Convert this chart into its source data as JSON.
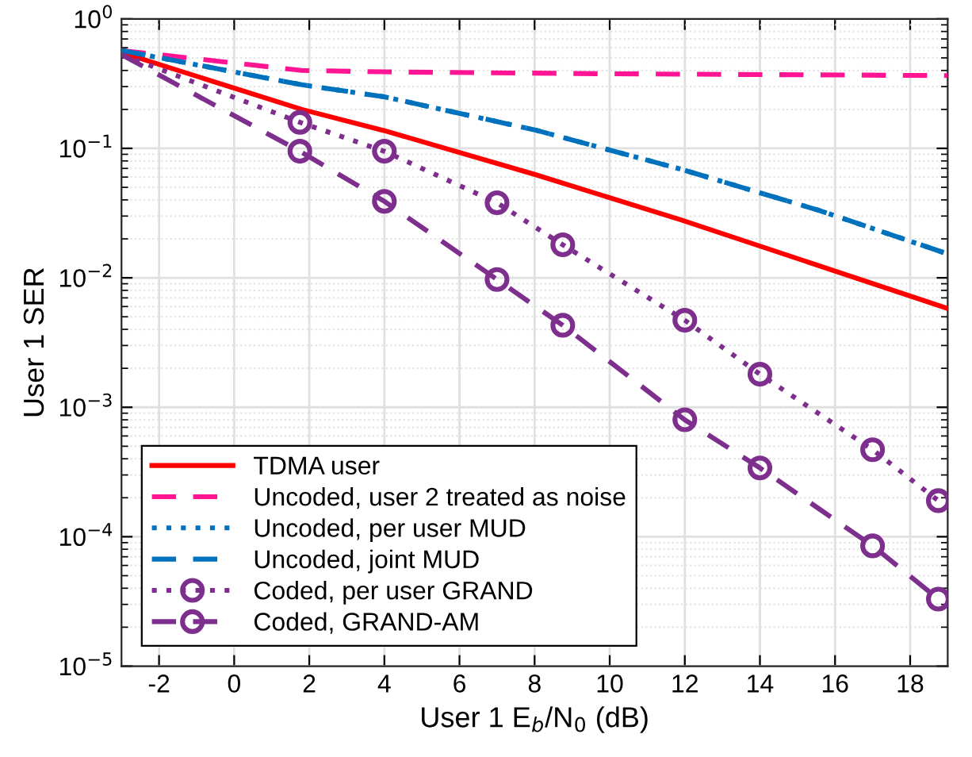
{
  "chart_data": {
    "type": "line",
    "xlabel": "User 1 E$_{b}$/N$_{0}$ (dB)",
    "ylabel": "User 1 SER",
    "xlim": [
      -3,
      19
    ],
    "xticks": [
      -2,
      0,
      2,
      4,
      6,
      8,
      10,
      12,
      14,
      16,
      18
    ],
    "log": "y",
    "ylim": [
      1e-05,
      1
    ],
    "yticks": [
      {
        "value": 1e-05,
        "label": "10$^{−5}$"
      },
      {
        "value": 0.0001,
        "label": "10$^{−4}$"
      },
      {
        "value": 0.001,
        "label": "10$^{−3}$"
      },
      {
        "value": 0.01,
        "label": "10$^{−2}$"
      },
      {
        "value": 0.1,
        "label": "10$^{−1}$"
      },
      {
        "value": 1,
        "label": "10$^{0}$"
      }
    ],
    "grid": true,
    "legend": "bottom left",
    "series": [
      {
        "name": "TDMA user",
        "color": "#ff0000",
        "line_style": "solid",
        "marker": "none",
        "x": [
          -3,
          1.8,
          4,
          8,
          11.9,
          19
        ],
        "values": [
          0.55,
          0.2,
          0.137,
          0.063,
          0.028,
          0.0058
        ]
      },
      {
        "name": "Uncoded, user 2 treated as noise",
        "color": "#ff1493",
        "line_style": "dashed",
        "marker": "none",
        "x": [
          -3,
          1.8,
          4,
          10,
          19
        ],
        "values": [
          0.57,
          0.4,
          0.39,
          0.377,
          0.365
        ]
      },
      {
        "name": "Uncoded, per user MUD",
        "color": "#0072bd",
        "line_style": "dotted",
        "marker": "none",
        "x": [
          -3,
          1.8,
          4,
          8,
          11.9,
          15.6,
          19
        ],
        "values": [
          0.57,
          0.31,
          0.25,
          0.139,
          0.069,
          0.033,
          0.0153
        ]
      },
      {
        "name": "Uncoded, joint MUD",
        "color": "#0072bd",
        "line_style": "dashed",
        "marker": "none",
        "x": [
          -3,
          1.8,
          4,
          8,
          11.9,
          15.6,
          19
        ],
        "values": [
          0.57,
          0.31,
          0.25,
          0.139,
          0.069,
          0.033,
          0.0153
        ]
      },
      {
        "name": "Coded, per user GRAND",
        "color": "#7e2f8e",
        "line_style": "dotted",
        "marker": "circle",
        "x": [
          -3,
          1.75,
          4,
          7,
          8.75,
          12,
          14,
          17,
          18.75
        ],
        "values": [
          0.53,
          0.159,
          0.095,
          0.038,
          0.018,
          0.0047,
          0.0018,
          0.00047,
          0.00019
        ]
      },
      {
        "name": "Coded, GRAND-AM",
        "color": "#7e2f8e",
        "line_style": "dashed",
        "marker": "circle",
        "x": [
          -3,
          1.75,
          4,
          7,
          8.75,
          12,
          14,
          17,
          18.75
        ],
        "values": [
          0.53,
          0.095,
          0.039,
          0.0097,
          0.0043,
          0.0008,
          0.00034,
          8.5e-05,
          3.3e-05
        ]
      }
    ]
  }
}
